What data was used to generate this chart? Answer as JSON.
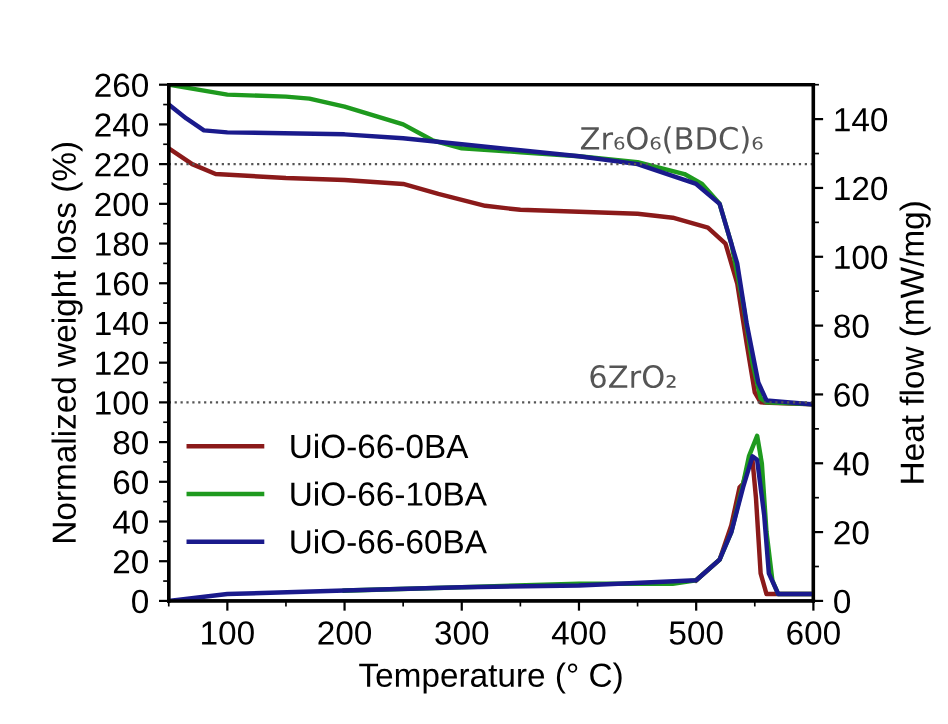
{
  "chart_data": {
    "type": "line",
    "xlabel": "Temperature (° C)",
    "ylabel": "Normalized weight loss (%)",
    "y2label": "Heat flow (mW/mg)",
    "xlim": [
      50,
      600
    ],
    "xticks": [
      100,
      200,
      300,
      400,
      500,
      600
    ],
    "ylim": [
      0,
      260
    ],
    "yticks": [
      0,
      20,
      40,
      60,
      80,
      100,
      120,
      140,
      160,
      180,
      200,
      220,
      240,
      260
    ],
    "y2lim": [
      0,
      150
    ],
    "y2ticks": [
      0,
      20,
      40,
      60,
      80,
      100,
      120,
      140
    ],
    "legend": "bottom left",
    "grid": false,
    "marker": "none",
    "line_style": "solid",
    "series": [
      {
        "name": "UiO-66-0BA",
        "color": "#8b1a1a",
        "x": [
          50,
          70,
          90,
          150,
          200,
          250,
          280,
          320,
          350,
          400,
          450,
          480,
          510,
          525,
          535,
          543,
          550,
          555,
          600
        ],
        "values": [
          228,
          220,
          215,
          213,
          212,
          210,
          205,
          199,
          197,
          196,
          195,
          193,
          188,
          180,
          160,
          130,
          105,
          100,
          99
        ]
      },
      {
        "name": "UiO-66-10BA",
        "color": "#1e9a1e",
        "x": [
          50,
          100,
          150,
          170,
          200,
          250,
          275,
          300,
          350,
          400,
          450,
          490,
          505,
          520,
          530,
          540,
          548,
          555,
          560,
          600
        ],
        "values": [
          260,
          255,
          254,
          253,
          249,
          240,
          232,
          228,
          226,
          224,
          221,
          215,
          210,
          200,
          180,
          150,
          120,
          102,
          100,
          99
        ]
      },
      {
        "name": "UiO-66-60BA",
        "color": "#1a1a8c",
        "x": [
          50,
          65,
          80,
          100,
          200,
          250,
          300,
          350,
          400,
          450,
          500,
          520,
          535,
          543,
          553,
          560,
          600
        ],
        "values": [
          250,
          243,
          237,
          236,
          235,
          233,
          230,
          227,
          224,
          220,
          210,
          200,
          170,
          140,
          110,
          101,
          99
        ]
      },
      {
        "color": "#8b1a1a",
        "axis": "y2",
        "x": [
          500,
          520,
          530,
          537,
          540,
          545,
          548,
          551,
          555,
          560,
          600
        ],
        "values": [
          6,
          12,
          22,
          33,
          34,
          40,
          41,
          30,
          8,
          2,
          2
        ]
      },
      {
        "color": "#1e9a1e",
        "axis": "y2",
        "x": [
          200,
          300,
          400,
          480,
          500,
          520,
          530,
          540,
          545,
          552,
          556,
          560,
          565,
          570,
          600
        ],
        "values": [
          3,
          4,
          5,
          5,
          6,
          12,
          20,
          34,
          42,
          48,
          40,
          20,
          6,
          2,
          2
        ]
      },
      {
        "color": "#1a1a8c",
        "axis": "y2",
        "x": [
          50,
          100,
          200,
          300,
          400,
          500,
          520,
          530,
          540,
          548,
          552,
          558,
          562,
          570,
          600
        ],
        "values": [
          0,
          2,
          3,
          4,
          4.5,
          6,
          12,
          20,
          33,
          42,
          41,
          25,
          8,
          2,
          2
        ]
      }
    ],
    "ref_lines": [
      {
        "axis": "y",
        "value": 220,
        "color": "#555555",
        "line_style": "dotted"
      },
      {
        "axis": "y",
        "value": 100,
        "color": "#555555",
        "line_style": "dotted"
      }
    ],
    "annotations": [
      "Zr₆O₆(BDC)₆",
      "6ZrO₂"
    ]
  }
}
